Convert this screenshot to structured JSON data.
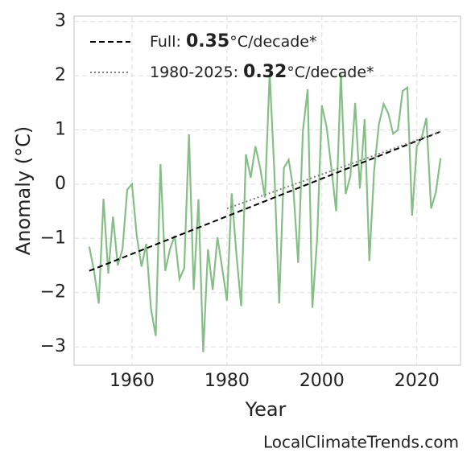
{
  "chart_data": {
    "type": "line",
    "xlabel": "Year",
    "ylabel": "Anomaly (°C)",
    "watermark": "LocalClimateTrends.com",
    "xlim": [
      1947.8,
      2029.2
    ],
    "ylim": [
      -3.34,
      3.1
    ],
    "xticks": [
      1960,
      1980,
      2000,
      2020
    ],
    "yticks": [
      {
        "value": -3,
        "label": "−3"
      },
      {
        "value": -2,
        "label": "−2"
      },
      {
        "value": -1,
        "label": "−1"
      },
      0,
      1,
      2,
      3
    ],
    "grid": true,
    "legend": "upper left",
    "series": [
      {
        "color": "#86bf86",
        "style": "solid",
        "x": [
          1951,
          1952,
          1953,
          1954,
          1955,
          1956,
          1957,
          1958,
          1959,
          1960,
          1961,
          1962,
          1963,
          1964,
          1965,
          1966,
          1967,
          1968,
          1969,
          1970,
          1971,
          1972,
          1973,
          1974,
          1975,
          1976,
          1977,
          1978,
          1979,
          1980,
          1981,
          1982,
          1983,
          1984,
          1985,
          1986,
          1987,
          1988,
          1989,
          1990,
          1991,
          1992,
          1993,
          1994,
          1995,
          1996,
          1997,
          1998,
          1999,
          2000,
          2001,
          2002,
          2003,
          2004,
          2005,
          2006,
          2007,
          2008,
          2009,
          2010,
          2011,
          2012,
          2013,
          2014,
          2015,
          2016,
          2017,
          2018,
          2019,
          2020,
          2021,
          2022,
          2023,
          2024,
          2025
        ],
        "values": [
          -1.15,
          -1.6,
          -2.2,
          -0.27,
          -1.65,
          -0.6,
          -1.5,
          -1.2,
          -0.1,
          0.0,
          -0.95,
          -1.52,
          -1.1,
          -2.3,
          -2.8,
          0.37,
          -1.6,
          -1.2,
          -0.95,
          -1.75,
          -1.55,
          0.92,
          -1.95,
          -0.28,
          -3.1,
          -1.2,
          -1.95,
          -0.98,
          -1.55,
          -2.15,
          -0.17,
          -1.3,
          -2.25,
          0.55,
          0.12,
          0.7,
          0.3,
          -0.25,
          2.05,
          0.2,
          -2.2,
          0.3,
          0.45,
          -0.1,
          -1.45,
          0.98,
          1.75,
          -2.28,
          -1.0,
          1.45,
          1.05,
          0.3,
          -0.5,
          2.05,
          -0.18,
          0.15,
          1.5,
          -0.08,
          1.2,
          -1.42,
          0.25,
          1.1,
          1.48,
          1.3,
          0.93,
          1.0,
          1.72,
          1.78,
          -0.58,
          0.7,
          0.85,
          1.22,
          -0.45,
          -0.15,
          0.48
        ]
      },
      {
        "name": "Full: 0.35°C/decade*",
        "color": "#000000",
        "style": "dashed",
        "x": [
          1951,
          2025
        ],
        "values": [
          -1.6,
          0.97
        ]
      },
      {
        "name": "1980-2025: 0.32°C/decade*",
        "color": "#808080",
        "style": "dotted",
        "x": [
          1980,
          2025
        ],
        "values": [
          -0.45,
          0.97
        ]
      }
    ]
  }
}
